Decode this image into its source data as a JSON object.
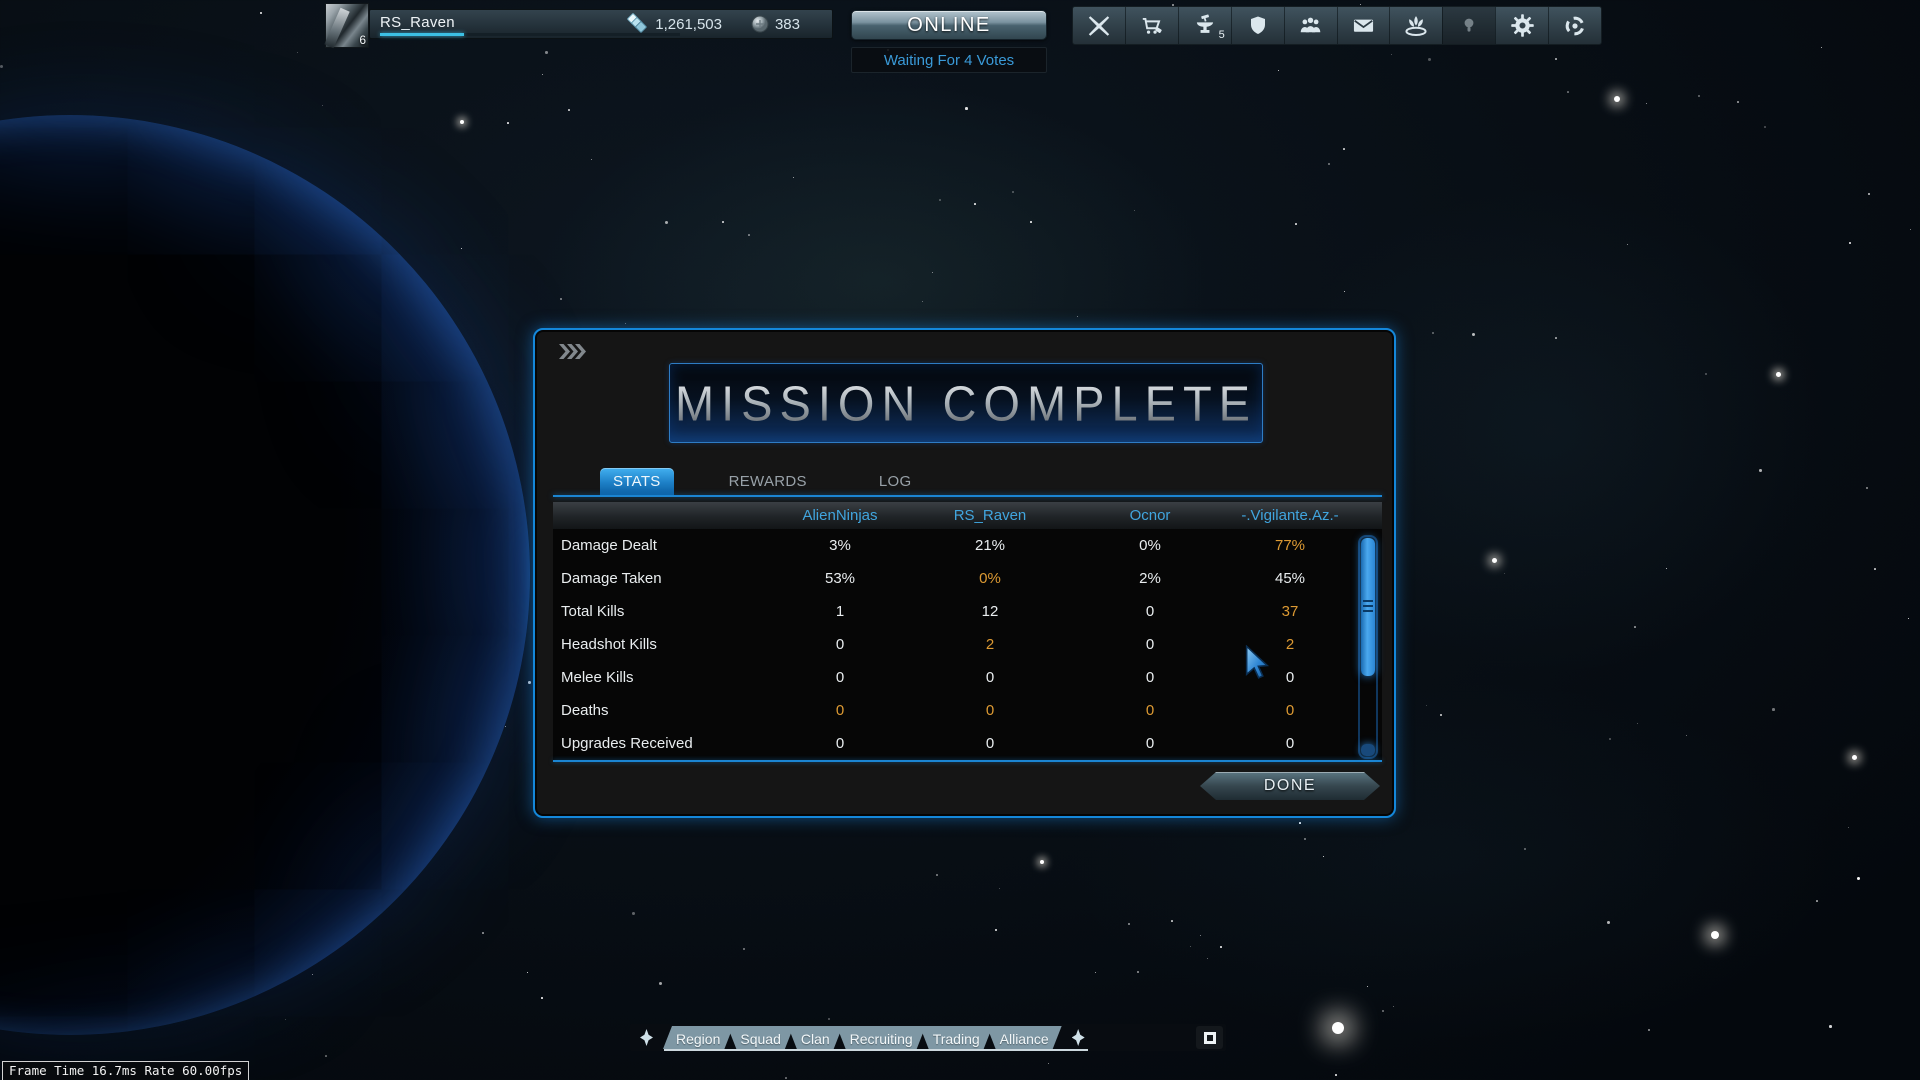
{
  "player": {
    "name": "RS_Raven",
    "rank": "6",
    "credits": "1,261,503",
    "platinum": "383",
    "xp_percent": 28
  },
  "status": {
    "online_label": "ONLINE",
    "vote_status": "Waiting For 4 Votes"
  },
  "top_bar": {
    "icons": [
      "crossed-swords",
      "market",
      "foundry",
      "armory",
      "squad",
      "inbox",
      "lotus",
      "hint",
      "settings",
      "session"
    ],
    "foundry_badge": "5"
  },
  "dialog": {
    "title": "MISSION COMPLETE",
    "tabs": [
      {
        "label": "STATS",
        "active": true
      },
      {
        "label": "REWARDS",
        "active": false
      },
      {
        "label": "LOG",
        "active": false
      }
    ],
    "done_label": "DONE",
    "table": {
      "columns": [
        "AlienNinjas",
        "RS_Raven",
        "Ocnor",
        "-.Vigilante.Az.-"
      ],
      "rows": [
        {
          "label": "Damage Dealt",
          "values": [
            "3%",
            "21%",
            "0%",
            "77%"
          ],
          "highlight": [
            3
          ]
        },
        {
          "label": "Damage Taken",
          "values": [
            "53%",
            "0%",
            "2%",
            "45%"
          ],
          "highlight": [
            1
          ]
        },
        {
          "label": "Total Kills",
          "values": [
            "1",
            "12",
            "0",
            "37"
          ],
          "highlight": [
            3
          ]
        },
        {
          "label": "Headshot Kills",
          "values": [
            "0",
            "2",
            "0",
            "2"
          ],
          "highlight": [
            1,
            3
          ]
        },
        {
          "label": "Melee Kills",
          "values": [
            "0",
            "0",
            "0",
            "0"
          ],
          "highlight": []
        },
        {
          "label": "Deaths",
          "values": [
            "0",
            "0",
            "0",
            "0"
          ],
          "highlight": [
            0,
            1,
            2,
            3
          ]
        },
        {
          "label": "Upgrades Received",
          "values": [
            "0",
            "0",
            "0",
            "0"
          ],
          "highlight": []
        }
      ]
    }
  },
  "chat": {
    "tabs": [
      "Region",
      "Squad",
      "Clan",
      "Recruiting",
      "Trading",
      "Alliance"
    ]
  },
  "perf": {
    "text": "Frame Time 16.7ms Rate 60.00fps"
  },
  "colors": {
    "accent": "#1b85d2",
    "highlight": "#dd9a33",
    "column_header_text": "#41a5de",
    "xp_bar": "#3cc0e4"
  }
}
